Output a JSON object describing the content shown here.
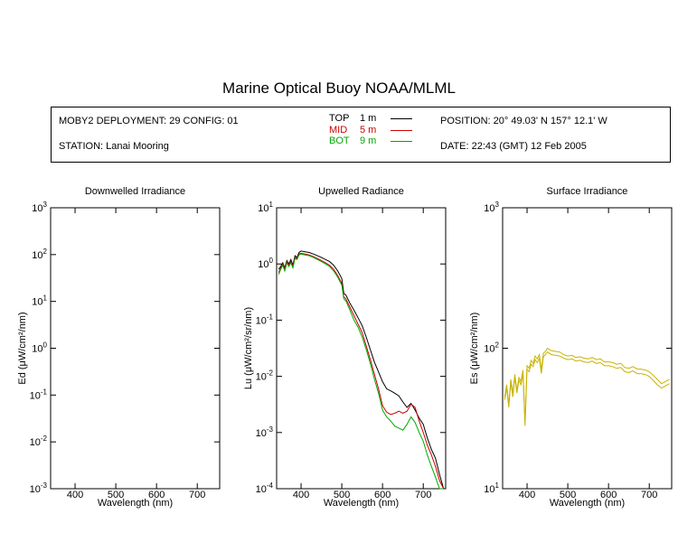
{
  "title": "Marine Optical Buoy NOAA/MLML",
  "header": {
    "deployment": "MOBY2 DEPLOYMENT: 29 CONFIG: 01",
    "station": "STATION: Lanai Mooring",
    "position": "POSITION: 20° 49.03' N   157° 12.1' W",
    "date": "DATE: 22:43 (GMT) 12 Feb 2005",
    "legend": [
      {
        "label": "TOP",
        "depth": "1  m",
        "color": "#000000"
      },
      {
        "label": "MID",
        "depth": "5  m",
        "color": "#cc0000"
      },
      {
        "label": "BOT",
        "depth": "9  m",
        "color": "#00aa00"
      }
    ]
  },
  "chart_data": [
    {
      "type": "line",
      "title": "Downwelled Irradiance",
      "xlabel": "Wavelength (nm)",
      "ylabel": "Ed  (μW/cm²/nm)",
      "xlim": [
        340,
        755
      ],
      "ylim": [
        0.001,
        1000
      ],
      "yscale": "log",
      "xticks": [
        400,
        500,
        600,
        700
      ],
      "yticks": [
        {
          "base": "10",
          "exp": "-3"
        },
        {
          "base": "10",
          "exp": "-2"
        },
        {
          "base": "10",
          "exp": "-1"
        },
        {
          "base": "10",
          "exp": "0"
        },
        {
          "base": "10",
          "exp": "1"
        },
        {
          "base": "10",
          "exp": "2"
        },
        {
          "base": "10",
          "exp": "3"
        }
      ],
      "series": []
    },
    {
      "type": "line",
      "title": "Upwelled Radiance",
      "xlabel": "Wavelength (nm)",
      "ylabel": "Lu  (μW/cm²/sr/nm)",
      "xlim": [
        340,
        755
      ],
      "ylim": [
        0.0001,
        10
      ],
      "yscale": "log",
      "xticks": [
        400,
        500,
        600,
        700
      ],
      "yticks": [
        {
          "base": "10",
          "exp": "-4"
        },
        {
          "base": "10",
          "exp": "-3"
        },
        {
          "base": "10",
          "exp": "-2"
        },
        {
          "base": "10",
          "exp": "-1"
        },
        {
          "base": "10",
          "exp": "0"
        },
        {
          "base": "10",
          "exp": "1"
        }
      ],
      "series": [
        {
          "color": "#000000",
          "x": [
            345,
            350,
            355,
            360,
            365,
            370,
            375,
            380,
            385,
            390,
            395,
            400,
            410,
            420,
            430,
            440,
            450,
            460,
            470,
            480,
            490,
            500,
            505,
            510,
            520,
            530,
            540,
            550,
            560,
            570,
            580,
            590,
            600,
            610,
            620,
            630,
            640,
            650,
            660,
            670,
            680,
            690,
            700,
            710,
            720,
            730,
            740,
            750
          ],
          "y": [
            0.8,
            0.9,
            1.05,
            0.85,
            1.15,
            1.0,
            1.2,
            0.95,
            1.4,
            1.3,
            1.6,
            1.7,
            1.65,
            1.6,
            1.5,
            1.4,
            1.3,
            1.2,
            1.1,
            0.95,
            0.75,
            0.55,
            0.3,
            0.28,
            0.2,
            0.15,
            0.11,
            0.08,
            0.05,
            0.03,
            0.018,
            0.012,
            0.008,
            0.006,
            0.0055,
            0.005,
            0.0045,
            0.0035,
            0.0028,
            0.0033,
            0.0025,
            0.0018,
            0.0014,
            0.0008,
            0.0005,
            0.00035,
            0.00018,
            0.0001
          ]
        },
        {
          "color": "#cc0000",
          "x": [
            345,
            350,
            355,
            360,
            365,
            370,
            375,
            380,
            385,
            390,
            395,
            400,
            410,
            420,
            430,
            440,
            450,
            460,
            470,
            480,
            490,
            500,
            505,
            510,
            520,
            530,
            540,
            550,
            560,
            570,
            580,
            590,
            600,
            610,
            620,
            630,
            640,
            650,
            660,
            670,
            680,
            690,
            700,
            710,
            720,
            730,
            740,
            750
          ],
          "y": [
            0.7,
            0.85,
            1.0,
            0.8,
            1.1,
            0.95,
            1.1,
            0.9,
            1.3,
            1.25,
            1.5,
            1.55,
            1.5,
            1.45,
            1.35,
            1.25,
            1.15,
            1.05,
            0.95,
            0.8,
            0.62,
            0.45,
            0.26,
            0.24,
            0.17,
            0.12,
            0.085,
            0.06,
            0.035,
            0.02,
            0.011,
            0.006,
            0.003,
            0.0023,
            0.0021,
            0.0022,
            0.0024,
            0.0022,
            0.0024,
            0.0032,
            0.0028,
            0.0016,
            0.001,
            0.0006,
            0.0004,
            0.00025,
            0.00014,
            0.0001
          ]
        },
        {
          "color": "#00aa00",
          "x": [
            345,
            350,
            355,
            360,
            365,
            370,
            375,
            380,
            385,
            390,
            395,
            400,
            410,
            420,
            430,
            440,
            450,
            460,
            470,
            480,
            490,
            500,
            505,
            510,
            520,
            530,
            540,
            550,
            560,
            570,
            580,
            590,
            600,
            610,
            620,
            630,
            640,
            650,
            660,
            670,
            680,
            690,
            700,
            710,
            720,
            730,
            740,
            750
          ],
          "y": [
            0.65,
            0.8,
            0.95,
            0.75,
            1.05,
            0.9,
            1.05,
            0.85,
            1.25,
            1.2,
            1.45,
            1.5,
            1.45,
            1.4,
            1.3,
            1.2,
            1.1,
            1.0,
            0.9,
            0.75,
            0.58,
            0.42,
            0.24,
            0.22,
            0.15,
            0.1,
            0.075,
            0.05,
            0.03,
            0.017,
            0.009,
            0.005,
            0.0025,
            0.0019,
            0.0016,
            0.0013,
            0.0012,
            0.0011,
            0.0014,
            0.0019,
            0.0015,
            0.001,
            0.0007,
            0.0004,
            0.00025,
            0.00016,
            0.0001,
            8e-05
          ]
        }
      ]
    },
    {
      "type": "line",
      "title": "Surface Irradiance",
      "xlabel": "Wavelength (nm)",
      "ylabel": "Es  (μW/cm²/nm)",
      "xlim": [
        340,
        755
      ],
      "ylim": [
        10,
        1000
      ],
      "yscale": "log",
      "xticks": [
        400,
        500,
        600,
        700
      ],
      "yticks": [
        {
          "base": "10",
          "exp": "1"
        },
        {
          "base": "10",
          "exp": "2"
        },
        {
          "base": "10",
          "exp": "3"
        }
      ],
      "series": [
        {
          "color": "#c8b400",
          "x": [
            345,
            350,
            355,
            360,
            365,
            370,
            375,
            380,
            385,
            390,
            395,
            400,
            405,
            410,
            415,
            420,
            425,
            430,
            435,
            440,
            445,
            450,
            455,
            460,
            470,
            480,
            490,
            500,
            510,
            520,
            530,
            540,
            550,
            560,
            570,
            580,
            590,
            600,
            610,
            620,
            630,
            640,
            650,
            660,
            670,
            680,
            690,
            700,
            710,
            720,
            730,
            740,
            750
          ],
          "y": [
            45,
            55,
            40,
            60,
            48,
            65,
            50,
            62,
            58,
            70,
            30,
            75,
            72,
            82,
            78,
            88,
            84,
            90,
            70,
            92,
            95,
            100,
            98,
            96,
            95,
            94,
            90,
            88,
            89,
            86,
            87,
            85,
            84,
            86,
            83,
            84,
            80,
            80,
            79,
            77,
            78,
            73,
            72,
            74,
            71,
            71,
            70,
            68,
            64,
            60,
            56,
            58,
            60
          ]
        },
        {
          "color": "#c8b400",
          "x": [
            345,
            350,
            355,
            360,
            365,
            370,
            375,
            380,
            385,
            390,
            395,
            400,
            405,
            410,
            415,
            420,
            425,
            430,
            435,
            440,
            445,
            450,
            455,
            460,
            470,
            480,
            490,
            500,
            510,
            520,
            530,
            540,
            550,
            560,
            570,
            580,
            590,
            600,
            610,
            620,
            630,
            640,
            650,
            660,
            670,
            680,
            690,
            700,
            710,
            720,
            730,
            740,
            750
          ],
          "y": [
            43,
            52,
            38,
            57,
            45,
            62,
            48,
            59,
            55,
            66,
            28,
            71,
            68,
            77,
            74,
            83,
            79,
            85,
            66,
            87,
            90,
            94,
            92,
            90,
            89,
            88,
            85,
            83,
            84,
            81,
            82,
            80,
            79,
            81,
            78,
            79,
            75,
            75,
            74,
            72,
            73,
            68,
            67,
            69,
            66,
            66,
            65,
            63,
            59,
            55,
            52,
            54,
            56
          ]
        }
      ]
    }
  ]
}
